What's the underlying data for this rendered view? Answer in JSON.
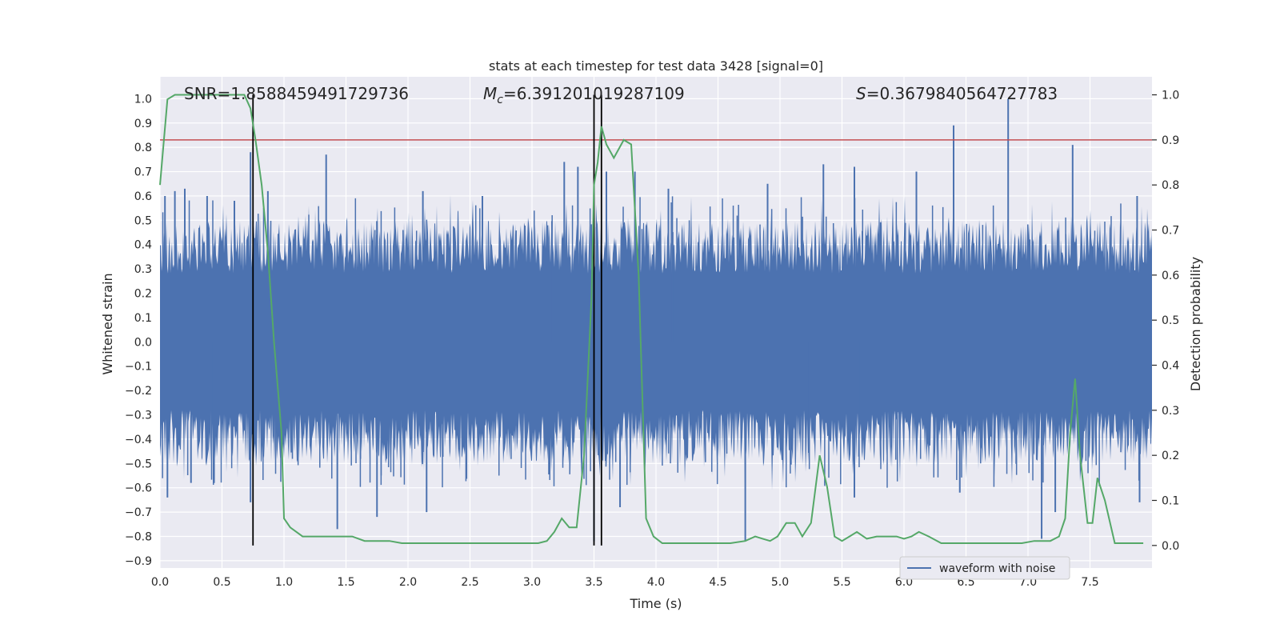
{
  "chart_data": {
    "type": "line",
    "title": "stats at each timestep for test data 3428 [signal=0]",
    "xlabel": "Time (s)",
    "ylabel_left": "Whitened strain",
    "ylabel_right": "Detection probability",
    "xlim": [
      0.0,
      8.0
    ],
    "ylim_left": [
      -0.93,
      1.09
    ],
    "ylim_right": [
      -0.05,
      1.04
    ],
    "x_ticks": [
      "0.0",
      "0.5",
      "1.0",
      "1.5",
      "2.0",
      "2.5",
      "3.0",
      "3.5",
      "4.0",
      "4.5",
      "5.0",
      "5.5",
      "6.0",
      "6.5",
      "7.0",
      "7.5"
    ],
    "y_ticks_left": [
      "1.0",
      "0.9",
      "0.8",
      "0.7",
      "0.6",
      "0.5",
      "0.4",
      "0.3",
      "0.2",
      "0.1",
      "0.0",
      "−0.1",
      "−0.2",
      "−0.3",
      "−0.4",
      "−0.5",
      "−0.6",
      "−0.7",
      "−0.8",
      "−0.9"
    ],
    "y_ticks_right": [
      "1.0",
      "0.9",
      "0.8",
      "0.7",
      "0.6",
      "0.5",
      "0.4",
      "0.3",
      "0.2",
      "0.1",
      "0.0"
    ],
    "annotations": {
      "snr": "SNR=1.8588459491729736",
      "mc_symbol": "M",
      "mc_sub": "c",
      "mc_value": "=6.391201019287109",
      "s_symbol": "S",
      "s_value": "=0.3679840564727783"
    },
    "threshold": {
      "value_right": 0.9,
      "color": "#c44e52"
    },
    "vertical_lines": [
      0.75,
      3.5,
      3.56
    ],
    "series": [
      {
        "name": "waveform with noise",
        "axis": "left",
        "color": "#4c72b0",
        "style": "dense noise, amplitude about ±0.3 with spikes up to 1.0",
        "spikes": [
          {
            "t": 0.04,
            "v": 0.6
          },
          {
            "t": 0.12,
            "v": 0.62
          },
          {
            "t": 0.2,
            "v": 0.63
          },
          {
            "t": 0.38,
            "v": 0.6
          },
          {
            "t": 0.6,
            "v": 0.58
          },
          {
            "t": 0.73,
            "v": 0.78
          },
          {
            "t": 0.87,
            "v": 0.62
          },
          {
            "t": 1.34,
            "v": 0.77
          },
          {
            "t": 2.12,
            "v": 0.62
          },
          {
            "t": 2.6,
            "v": 0.6
          },
          {
            "t": 3.26,
            "v": 0.74
          },
          {
            "t": 3.37,
            "v": 0.72
          },
          {
            "t": 3.6,
            "v": 0.7
          },
          {
            "t": 3.83,
            "v": 0.7
          },
          {
            "t": 4.1,
            "v": 0.63
          },
          {
            "t": 4.9,
            "v": 0.65
          },
          {
            "t": 5.35,
            "v": 0.73
          },
          {
            "t": 5.6,
            "v": 0.72
          },
          {
            "t": 6.1,
            "v": 0.7
          },
          {
            "t": 6.4,
            "v": 0.89
          },
          {
            "t": 6.84,
            "v": 1.0
          },
          {
            "t": 7.36,
            "v": 0.81
          },
          {
            "t": 7.88,
            "v": 0.6
          },
          {
            "t": 0.06,
            "v": -0.64
          },
          {
            "t": 0.25,
            "v": -0.58
          },
          {
            "t": 0.73,
            "v": -0.66
          },
          {
            "t": 1.43,
            "v": -0.77
          },
          {
            "t": 1.75,
            "v": -0.72
          },
          {
            "t": 2.15,
            "v": -0.7
          },
          {
            "t": 3.5,
            "v": -0.82
          },
          {
            "t": 3.71,
            "v": -0.68
          },
          {
            "t": 4.72,
            "v": -0.82
          },
          {
            "t": 5.6,
            "v": -0.64
          },
          {
            "t": 6.45,
            "v": -0.62
          },
          {
            "t": 7.11,
            "v": -0.81
          },
          {
            "t": 7.22,
            "v": -0.7
          },
          {
            "t": 7.9,
            "v": -0.66
          }
        ]
      },
      {
        "name": "detection probability",
        "axis": "right",
        "color": "#55a868",
        "x": [
          0.0,
          0.06,
          0.12,
          0.2,
          0.3,
          0.4,
          0.5,
          0.6,
          0.68,
          0.73,
          0.77,
          0.82,
          0.87,
          0.92,
          0.98,
          1.0,
          1.05,
          1.15,
          1.25,
          1.35,
          1.45,
          1.5,
          1.55,
          1.65,
          1.75,
          1.85,
          1.95,
          2.05,
          2.15,
          2.25,
          2.35,
          2.5,
          2.65,
          2.8,
          2.95,
          3.05,
          3.12,
          3.18,
          3.24,
          3.3,
          3.36,
          3.42,
          3.48,
          3.5,
          3.53,
          3.56,
          3.6,
          3.66,
          3.74,
          3.8,
          3.86,
          3.92,
          3.98,
          4.05,
          4.15,
          4.3,
          4.45,
          4.6,
          4.72,
          4.8,
          4.86,
          4.92,
          4.98,
          5.05,
          5.12,
          5.18,
          5.25,
          5.32,
          5.38,
          5.44,
          5.5,
          5.56,
          5.62,
          5.7,
          5.78,
          5.86,
          5.94,
          6.0,
          6.06,
          6.12,
          6.2,
          6.3,
          6.45,
          6.6,
          6.8,
          6.95,
          7.05,
          7.12,
          7.18,
          7.25,
          7.3,
          7.34,
          7.38,
          7.42,
          7.48,
          7.52,
          7.56,
          7.62,
          7.7,
          7.78,
          7.86,
          7.93
        ],
        "y": [
          0.8,
          0.99,
          1.0,
          1.0,
          1.0,
          1.0,
          1.0,
          1.0,
          1.0,
          0.97,
          0.9,
          0.8,
          0.65,
          0.45,
          0.25,
          0.06,
          0.04,
          0.02,
          0.02,
          0.02,
          0.02,
          0.02,
          0.02,
          0.01,
          0.01,
          0.01,
          0.005,
          0.005,
          0.005,
          0.005,
          0.005,
          0.005,
          0.005,
          0.005,
          0.005,
          0.005,
          0.01,
          0.03,
          0.06,
          0.04,
          0.04,
          0.2,
          0.55,
          0.8,
          0.85,
          0.93,
          0.89,
          0.86,
          0.9,
          0.89,
          0.6,
          0.06,
          0.02,
          0.005,
          0.005,
          0.005,
          0.005,
          0.005,
          0.01,
          0.02,
          0.015,
          0.01,
          0.02,
          0.05,
          0.05,
          0.02,
          0.05,
          0.2,
          0.13,
          0.02,
          0.01,
          0.02,
          0.03,
          0.015,
          0.02,
          0.02,
          0.02,
          0.015,
          0.02,
          0.03,
          0.02,
          0.005,
          0.005,
          0.005,
          0.005,
          0.005,
          0.01,
          0.01,
          0.01,
          0.02,
          0.06,
          0.25,
          0.37,
          0.2,
          0.05,
          0.05,
          0.15,
          0.1,
          0.005,
          0.005,
          0.005,
          0.005
        ]
      }
    ],
    "legend": {
      "label": "waveform with noise",
      "location": "lower-right"
    }
  }
}
